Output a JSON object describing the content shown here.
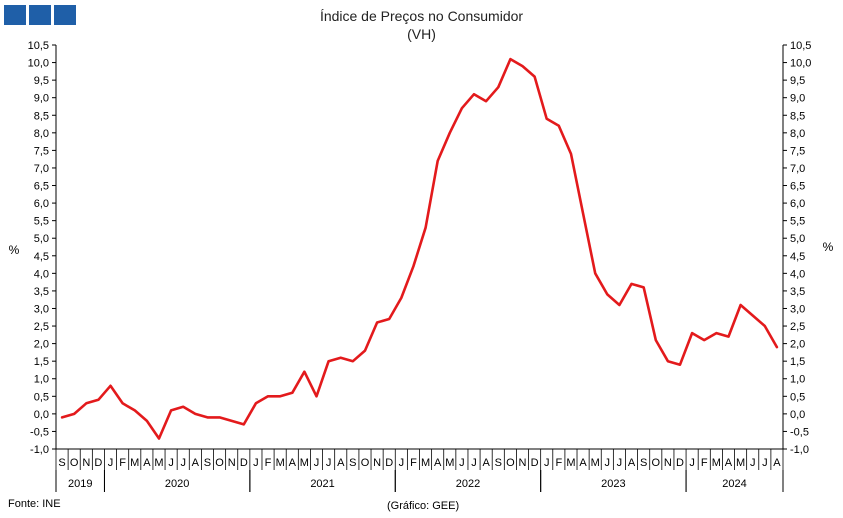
{
  "title": "Índice de Preços no Consumidor",
  "subtitle": "(VH)",
  "ylabel": "%",
  "source": "Fonte: INE",
  "credit": "(Gráfico: GEE)",
  "colors": {
    "line": "#e31a1c",
    "logo": "#1f5fa8",
    "axis": "#000000"
  },
  "chart_data": {
    "type": "line",
    "ylim": [
      -1.0,
      10.5
    ],
    "ystep": 0.5,
    "grid": false,
    "y_axes": "left-and-right",
    "y_ticks": [
      "-1,0",
      "-0,5",
      "0,0",
      "0,5",
      "1,0",
      "1,5",
      "2,0",
      "2,5",
      "3,0",
      "3,5",
      "4,0",
      "4,5",
      "5,0",
      "5,5",
      "6,0",
      "6,5",
      "7,0",
      "7,5",
      "8,0",
      "8,5",
      "9,0",
      "9,5",
      "10,0",
      "10,5"
    ],
    "month_labels": [
      "S",
      "O",
      "N",
      "D",
      "J",
      "F",
      "M",
      "A",
      "M",
      "J",
      "J",
      "A",
      "S",
      "O",
      "N",
      "D",
      "J",
      "F",
      "M",
      "A",
      "M",
      "J",
      "J",
      "A",
      "S",
      "O",
      "N",
      "D",
      "J",
      "F",
      "M",
      "A",
      "M",
      "J",
      "J",
      "A",
      "S",
      "O",
      "N",
      "D",
      "J",
      "F",
      "M",
      "A",
      "M",
      "J",
      "J",
      "A",
      "S",
      "O",
      "N",
      "D",
      "J",
      "F",
      "M",
      "A",
      "M",
      "J",
      "J",
      "A"
    ],
    "years": [
      {
        "label": "2019",
        "start": 0,
        "count": 4
      },
      {
        "label": "2020",
        "start": 4,
        "count": 12
      },
      {
        "label": "2021",
        "start": 16,
        "count": 12
      },
      {
        "label": "2022",
        "start": 28,
        "count": 12
      },
      {
        "label": "2023",
        "start": 40,
        "count": 12
      },
      {
        "label": "2024",
        "start": 52,
        "count": 8
      }
    ],
    "series": [
      {
        "values": [
          -0.1,
          0.0,
          0.3,
          0.4,
          0.8,
          0.3,
          0.1,
          -0.2,
          -0.7,
          0.1,
          0.2,
          0.0,
          -0.1,
          -0.1,
          -0.2,
          -0.3,
          0.3,
          0.5,
          0.5,
          0.6,
          1.2,
          0.5,
          1.5,
          1.6,
          1.5,
          1.8,
          2.6,
          2.7,
          3.3,
          4.2,
          5.3,
          7.2,
          8.0,
          8.7,
          9.1,
          8.9,
          9.3,
          10.1,
          9.9,
          9.6,
          8.4,
          8.2,
          7.4,
          5.7,
          4.0,
          3.4,
          3.1,
          3.7,
          3.6,
          2.1,
          1.5,
          1.4,
          2.3,
          2.1,
          2.3,
          2.2,
          3.1,
          2.8,
          2.5,
          1.9
        ]
      }
    ]
  }
}
